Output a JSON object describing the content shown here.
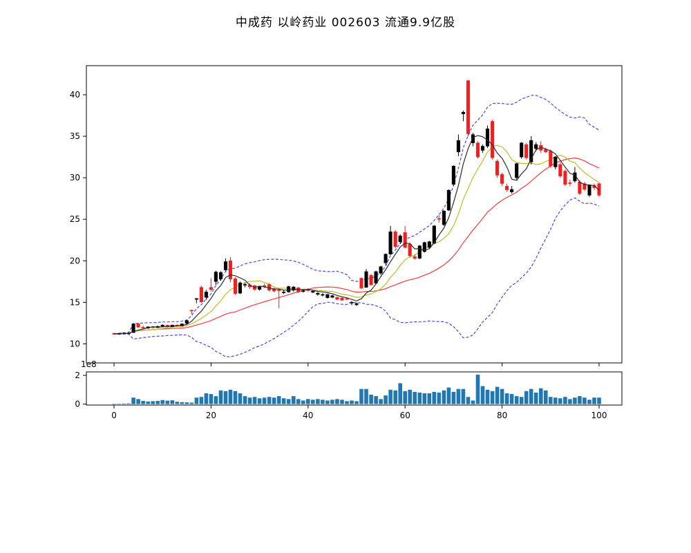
{
  "title": "中成药 以岭药业 002603 流通9.9亿股",
  "colors": {
    "up": "#000000",
    "down": "#f02020",
    "ma_fast": "#2a2a2a",
    "ma_mid": "#bdbd22",
    "ma_slow": "#f03b3b",
    "band": "#4646e8",
    "volume": "#1f77b4",
    "frame": "#000000",
    "tick_text": "#000000"
  },
  "chart_data": [
    {
      "type": "candlestick",
      "title": "中成药 以岭药业 002603 流通9.9亿股",
      "xlabel": "",
      "ylabel": "",
      "xlim": [
        -5.7,
        104.7
      ],
      "ylim": [
        7.7,
        43.5
      ],
      "x_ticks": [
        0,
        20,
        40,
        60,
        80,
        100
      ],
      "x_tick_labels_shown": false,
      "y_ticks": [
        10,
        15,
        20,
        25,
        30,
        35,
        40
      ],
      "grid": false,
      "legend": "none",
      "up_color_rule": "close >= open -> black, else red",
      "open": [
        11.25,
        11.2,
        11.25,
        11.3,
        11.35,
        12.4,
        12.0,
        11.9,
        12.05,
        11.95,
        12.1,
        12.25,
        12.05,
        12.25,
        12.15,
        12.45,
        14.05,
        15.4,
        16.8,
        15.6,
        16.8,
        17.5,
        17.8,
        18.9,
        20.0,
        17.85,
        16.1,
        17.1,
        17.1,
        17.0,
        16.55,
        17.0,
        17.15,
        16.6,
        16.5,
        16.15,
        16.25,
        16.45,
        16.75,
        16.3,
        16.5,
        16.2,
        15.95,
        15.9,
        15.55,
        15.6,
        15.6,
        15.5,
        15.45,
        14.9,
        14.7,
        17.9,
        16.8,
        18.25,
        17.3,
        18.5,
        19.75,
        20.8,
        23.5,
        22.3,
        23.4,
        22.0,
        20.5,
        20.3,
        21.1,
        21.6,
        22.1,
        25.1,
        24.35,
        26.1,
        29.2,
        33.1,
        37.7,
        41.7,
        34.2,
        34.2,
        33.3,
        33.8,
        36.8,
        32.0,
        30.4,
        29.0,
        28.3,
        30.0,
        32.5,
        34.0,
        31.9,
        33.5,
        33.9,
        33.4,
        33.2,
        31.3,
        31.6,
        30.8,
        29.4,
        29.6,
        29.5,
        29.3,
        27.9,
        29.1,
        29.3
      ],
      "high": [
        11.35,
        11.3,
        11.35,
        11.4,
        12.5,
        12.5,
        12.2,
        12.1,
        12.15,
        12.2,
        12.35,
        12.3,
        12.3,
        12.35,
        12.45,
        12.85,
        14.1,
        15.5,
        17.0,
        16.5,
        17.9,
        18.8,
        18.75,
        20.3,
        20.45,
        18.0,
        17.5,
        17.4,
        17.3,
        17.1,
        16.95,
        17.25,
        17.3,
        16.75,
        16.6,
        16.5,
        17.0,
        16.95,
        16.85,
        16.55,
        16.7,
        16.45,
        16.2,
        16.1,
        16.0,
        15.9,
        15.7,
        15.6,
        15.55,
        15.15,
        14.95,
        18.0,
        19.0,
        18.4,
        18.8,
        19.4,
        20.9,
        24.2,
        23.7,
        23.2,
        24.2,
        22.2,
        20.8,
        21.9,
        22.3,
        22.4,
        24.3,
        25.5,
        26.1,
        28.6,
        31.5,
        35.2,
        38.1,
        41.8,
        35.4,
        34.4,
        34.0,
        36.3,
        37.0,
        32.2,
        30.6,
        29.3,
        29.0,
        31.8,
        34.3,
        34.2,
        35.0,
        34.3,
        34.4,
        33.6,
        33.4,
        32.6,
        31.9,
        31.0,
        29.8,
        31.3,
        29.7,
        29.5,
        29.2,
        29.3,
        29.4
      ],
      "low": [
        11.1,
        11.1,
        11.15,
        11.2,
        11.3,
        11.9,
        11.85,
        11.8,
        11.85,
        11.9,
        12.0,
        11.95,
        12.0,
        12.05,
        12.1,
        12.35,
        13.55,
        14.9,
        14.95,
        15.3,
        16.3,
        17.1,
        17.6,
        18.75,
        17.4,
        15.9,
        16.0,
        16.8,
        16.6,
        16.4,
        16.4,
        16.7,
        16.3,
        16.2,
        14.3,
        16.0,
        16.15,
        16.3,
        16.1,
        16.15,
        16.3,
        16.1,
        15.8,
        15.7,
        15.45,
        15.5,
        15.25,
        15.15,
        15.3,
        14.65,
        14.55,
        16.6,
        16.75,
        17.0,
        17.2,
        18.3,
        19.5,
        20.7,
        21.5,
        22.0,
        21.5,
        20.4,
        20.1,
        20.2,
        21.0,
        21.4,
        22.0,
        24.6,
        24.2,
        26.0,
        29.0,
        32.6,
        36.8,
        35.0,
        33.8,
        32.3,
        33.0,
        33.6,
        32.2,
        30.0,
        29.0,
        28.3,
        28.1,
        29.8,
        32.3,
        32.2,
        31.6,
        33.2,
        33.0,
        33.0,
        31.2,
        31.0,
        30.0,
        29.0,
        29.0,
        29.4,
        27.9,
        28.4,
        27.7,
        28.5,
        27.7
      ],
      "close": [
        11.2,
        11.25,
        11.3,
        11.3,
        12.4,
        12.0,
        11.9,
        12.05,
        11.95,
        12.1,
        12.25,
        12.05,
        12.25,
        12.15,
        12.4,
        12.8,
        14.0,
        15.45,
        15.05,
        16.25,
        16.55,
        18.65,
        18.6,
        19.9,
        17.8,
        16.05,
        17.35,
        17.15,
        16.85,
        16.55,
        16.85,
        16.9,
        16.45,
        16.35,
        16.4,
        16.25,
        16.9,
        16.85,
        16.25,
        16.4,
        16.45,
        16.35,
        16.1,
        15.95,
        15.95,
        15.8,
        15.35,
        15.25,
        15.35,
        15.0,
        14.85,
        16.7,
        18.7,
        17.1,
        18.7,
        19.3,
        20.8,
        23.5,
        21.7,
        23.0,
        21.6,
        20.6,
        20.3,
        21.8,
        22.2,
        22.3,
        24.2,
        25.0,
        26.0,
        28.5,
        31.4,
        34.5,
        37.9,
        35.3,
        35.2,
        32.5,
        33.8,
        35.9,
        32.4,
        30.3,
        29.3,
        28.55,
        28.6,
        31.7,
        34.2,
        32.4,
        34.5,
        34.0,
        33.3,
        33.1,
        31.4,
        32.5,
        30.2,
        29.2,
        29.3,
        30.6,
        28.1,
        28.6,
        29.1,
        28.8,
        27.9
      ],
      "overlays": [
        {
          "name": "ma-fast",
          "kind": "sma",
          "window": 5,
          "color_key": "ma_fast",
          "style": "solid"
        },
        {
          "name": "ma-mid",
          "kind": "sma",
          "window": 10,
          "color_key": "ma_mid",
          "style": "solid"
        },
        {
          "name": "ma-slow",
          "kind": "sma",
          "window": 26,
          "color_key": "ma_slow",
          "style": "solid"
        },
        {
          "name": "boll-upper",
          "kind": "bollinger",
          "window": 26,
          "mult": 2,
          "color_key": "band",
          "style": "dashed"
        },
        {
          "name": "boll-lower",
          "kind": "bollinger",
          "window": 26,
          "mult": -2,
          "color_key": "band",
          "style": "dashed"
        }
      ]
    },
    {
      "type": "bar",
      "name": "volume",
      "unit": "1e8",
      "offset_label": "1e8",
      "ylim": [
        -0.07,
        2.24
      ],
      "y_ticks": [
        0,
        2
      ],
      "x_ticks": [
        0,
        20,
        40,
        60,
        80,
        100
      ],
      "x_tick_labels": [
        "0",
        "20",
        "40",
        "60",
        "80",
        "100"
      ],
      "values": [
        0.02,
        0.03,
        0.04,
        0.05,
        0.45,
        0.35,
        0.22,
        0.18,
        0.2,
        0.22,
        0.28,
        0.24,
        0.26,
        0.16,
        0.13,
        0.12,
        0.1,
        0.45,
        0.5,
        0.75,
        0.7,
        0.55,
        0.95,
        0.9,
        1.0,
        0.9,
        0.75,
        0.55,
        0.45,
        0.5,
        0.4,
        0.45,
        0.5,
        0.45,
        0.55,
        0.4,
        0.35,
        0.55,
        0.35,
        0.25,
        0.35,
        0.3,
        0.35,
        0.3,
        0.25,
        0.3,
        0.35,
        0.3,
        0.2,
        0.25,
        0.2,
        1.05,
        1.05,
        0.65,
        0.55,
        0.35,
        0.6,
        1.0,
        0.95,
        1.45,
        0.9,
        1.0,
        0.85,
        0.8,
        0.75,
        0.75,
        0.85,
        0.8,
        0.95,
        1.15,
        0.85,
        1.05,
        1.05,
        0.5,
        0.25,
        2.05,
        1.25,
        1.0,
        0.9,
        1.2,
        1.05,
        0.75,
        0.7,
        0.55,
        0.5,
        0.9,
        1.05,
        0.8,
        1.1,
        0.95,
        0.5,
        0.45,
        0.4,
        0.5,
        0.35,
        0.45,
        0.55,
        0.45,
        0.3,
        0.45,
        0.45
      ]
    }
  ]
}
